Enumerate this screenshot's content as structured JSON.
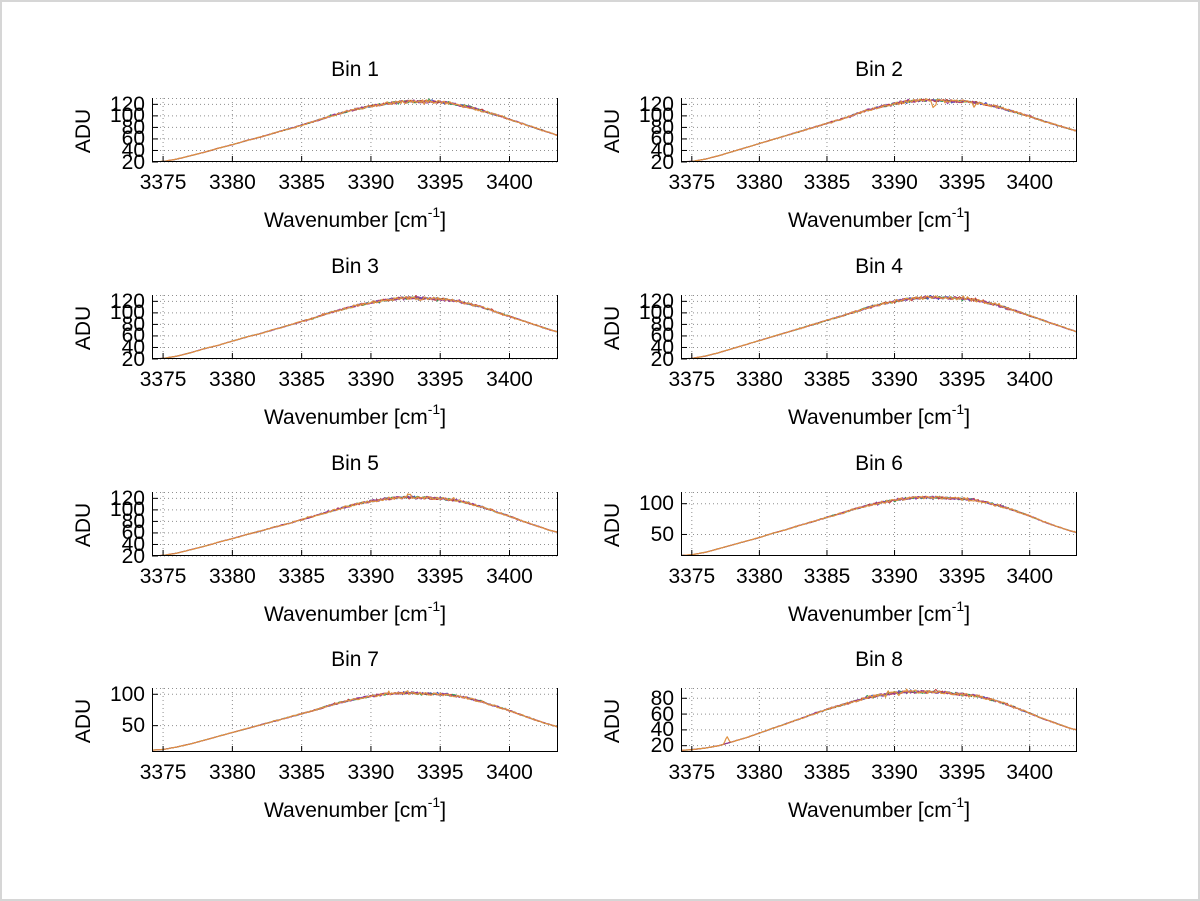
{
  "figure": {
    "background": "#ffffff",
    "frame_color": "#d6d6d6",
    "axis_color": "#000000",
    "grid_color": "#8f8f8f",
    "ylabel": "ADU",
    "xlabel_main": "Wavenumber [cm",
    "xlabel_sup": "-1",
    "xlabel_end": "]",
    "series_colors": [
      "#3b52c4",
      "#2e9e4f",
      "#c43b3b",
      "#953a9e",
      "#e09140"
    ],
    "xlim": [
      3374.2,
      3403.5
    ],
    "xticks": [
      3375,
      3380,
      3385,
      3390,
      3395,
      3400
    ]
  },
  "chart_data": [
    {
      "type": "line",
      "title": "Bin 1",
      "ylabel": "ADU",
      "xlabel": "Wavenumber [cm^-1]",
      "ylim": [
        20,
        131
      ],
      "yticks": [
        20,
        40,
        60,
        80,
        100,
        120
      ],
      "noise_amp": 2.6,
      "spikes": [],
      "points": [
        [
          3374.2,
          20
        ],
        [
          3375,
          21
        ],
        [
          3376,
          25
        ],
        [
          3377,
          31
        ],
        [
          3378,
          37
        ],
        [
          3379,
          44
        ],
        [
          3380,
          50
        ],
        [
          3381,
          57
        ],
        [
          3382,
          63
        ],
        [
          3383,
          70
        ],
        [
          3384,
          77
        ],
        [
          3385,
          84
        ],
        [
          3386,
          91
        ],
        [
          3387,
          99
        ],
        [
          3388,
          106
        ],
        [
          3389,
          112
        ],
        [
          3390,
          117
        ],
        [
          3391,
          121
        ],
        [
          3392,
          124
        ],
        [
          3393,
          125
        ],
        [
          3394,
          125
        ],
        [
          3395,
          124
        ],
        [
          3396,
          121
        ],
        [
          3397,
          116
        ],
        [
          3398,
          109
        ],
        [
          3399,
          102
        ],
        [
          3400,
          94
        ],
        [
          3401,
          86
        ],
        [
          3402,
          78
        ],
        [
          3403,
          70
        ],
        [
          3403.5,
          66
        ]
      ]
    },
    {
      "type": "line",
      "title": "Bin 2",
      "ylabel": "ADU",
      "xlabel": "Wavenumber [cm^-1]",
      "ylim": [
        20,
        131
      ],
      "yticks": [
        20,
        40,
        60,
        80,
        100,
        120
      ],
      "noise_amp": 2.6,
      "spikes": [
        {
          "x": 3392.9,
          "dy": -14
        },
        {
          "x": 3395.9,
          "dy": -8
        }
      ],
      "points": [
        [
          3374.2,
          20
        ],
        [
          3375,
          21
        ],
        [
          3376,
          25
        ],
        [
          3377,
          31
        ],
        [
          3378,
          38
        ],
        [
          3379,
          45
        ],
        [
          3380,
          52
        ],
        [
          3381,
          59
        ],
        [
          3382,
          66
        ],
        [
          3383,
          73
        ],
        [
          3384,
          80
        ],
        [
          3385,
          87
        ],
        [
          3386,
          94
        ],
        [
          3387,
          102
        ],
        [
          3388,
          110
        ],
        [
          3389,
          116
        ],
        [
          3390,
          121
        ],
        [
          3391,
          125
        ],
        [
          3392,
          127
        ],
        [
          3393,
          127
        ],
        [
          3394,
          126
        ],
        [
          3395,
          125
        ],
        [
          3396,
          123
        ],
        [
          3397,
          119
        ],
        [
          3398,
          113
        ],
        [
          3399,
          106
        ],
        [
          3400,
          99
        ],
        [
          3401,
          91
        ],
        [
          3402,
          84
        ],
        [
          3403,
          77
        ],
        [
          3403.5,
          74
        ]
      ]
    },
    {
      "type": "line",
      "title": "Bin 3",
      "ylabel": "ADU",
      "xlabel": "Wavenumber [cm^-1]",
      "ylim": [
        20,
        131
      ],
      "yticks": [
        20,
        40,
        60,
        80,
        100,
        120
      ],
      "noise_amp": 2.6,
      "spikes": [],
      "points": [
        [
          3374.2,
          20
        ],
        [
          3375,
          21
        ],
        [
          3376,
          25
        ],
        [
          3377,
          31
        ],
        [
          3378,
          38
        ],
        [
          3379,
          44
        ],
        [
          3380,
          51
        ],
        [
          3381,
          58
        ],
        [
          3382,
          64
        ],
        [
          3383,
          71
        ],
        [
          3384,
          78
        ],
        [
          3385,
          85
        ],
        [
          3386,
          92
        ],
        [
          3387,
          100
        ],
        [
          3388,
          107
        ],
        [
          3389,
          113
        ],
        [
          3390,
          118
        ],
        [
          3391,
          122
        ],
        [
          3392,
          125
        ],
        [
          3393,
          126
        ],
        [
          3394,
          125
        ],
        [
          3395,
          124
        ],
        [
          3396,
          121
        ],
        [
          3397,
          116
        ],
        [
          3398,
          110
        ],
        [
          3399,
          102
        ],
        [
          3400,
          94
        ],
        [
          3401,
          86
        ],
        [
          3402,
          78
        ],
        [
          3403,
          70
        ],
        [
          3403.5,
          67
        ]
      ]
    },
    {
      "type": "line",
      "title": "Bin 4",
      "ylabel": "ADU",
      "xlabel": "Wavenumber [cm^-1]",
      "ylim": [
        20,
        131
      ],
      "yticks": [
        20,
        40,
        60,
        80,
        100,
        120
      ],
      "noise_amp": 2.6,
      "spikes": [],
      "points": [
        [
          3374.2,
          20
        ],
        [
          3375,
          21
        ],
        [
          3376,
          25
        ],
        [
          3377,
          31
        ],
        [
          3378,
          38
        ],
        [
          3379,
          45
        ],
        [
          3380,
          52
        ],
        [
          3381,
          59
        ],
        [
          3382,
          66
        ],
        [
          3383,
          73
        ],
        [
          3384,
          80
        ],
        [
          3385,
          87
        ],
        [
          3386,
          94
        ],
        [
          3387,
          101
        ],
        [
          3388,
          109
        ],
        [
          3389,
          115
        ],
        [
          3390,
          120
        ],
        [
          3391,
          124
        ],
        [
          3392,
          126
        ],
        [
          3393,
          127
        ],
        [
          3394,
          126
        ],
        [
          3395,
          125
        ],
        [
          3396,
          122
        ],
        [
          3397,
          117
        ],
        [
          3398,
          111
        ],
        [
          3399,
          103
        ],
        [
          3400,
          95
        ],
        [
          3401,
          87
        ],
        [
          3402,
          79
        ],
        [
          3403,
          71
        ],
        [
          3403.5,
          67
        ]
      ]
    },
    {
      "type": "line",
      "title": "Bin 5",
      "ylabel": "ADU",
      "xlabel": "Wavenumber [cm^-1]",
      "ylim": [
        20,
        131
      ],
      "yticks": [
        20,
        40,
        60,
        80,
        100,
        120
      ],
      "noise_amp": 2.6,
      "spikes": [
        {
          "x": 3392.7,
          "dy": 6
        }
      ],
      "points": [
        [
          3374.2,
          20
        ],
        [
          3375,
          21
        ],
        [
          3376,
          25
        ],
        [
          3377,
          31
        ],
        [
          3378,
          37
        ],
        [
          3379,
          44
        ],
        [
          3380,
          50
        ],
        [
          3381,
          57
        ],
        [
          3382,
          63
        ],
        [
          3383,
          70
        ],
        [
          3384,
          76
        ],
        [
          3385,
          83
        ],
        [
          3386,
          90
        ],
        [
          3387,
          97
        ],
        [
          3388,
          104
        ],
        [
          3389,
          110
        ],
        [
          3390,
          115
        ],
        [
          3391,
          119
        ],
        [
          3392,
          121
        ],
        [
          3393,
          122
        ],
        [
          3394,
          121
        ],
        [
          3395,
          120
        ],
        [
          3396,
          117
        ],
        [
          3397,
          112
        ],
        [
          3398,
          105
        ],
        [
          3399,
          97
        ],
        [
          3400,
          89
        ],
        [
          3401,
          80
        ],
        [
          3402,
          72
        ],
        [
          3403,
          64
        ],
        [
          3403.5,
          61
        ]
      ]
    },
    {
      "type": "line",
      "title": "Bin 6",
      "ylabel": "ADU",
      "xlabel": "Wavenumber [cm^-1]",
      "ylim": [
        15,
        119
      ],
      "yticks": [
        50,
        100
      ],
      "noise_amp": 2.2,
      "spikes": [],
      "points": [
        [
          3374.2,
          16
        ],
        [
          3375,
          17
        ],
        [
          3376,
          21
        ],
        [
          3377,
          27
        ],
        [
          3378,
          33
        ],
        [
          3379,
          39
        ],
        [
          3380,
          45
        ],
        [
          3381,
          52
        ],
        [
          3382,
          58
        ],
        [
          3383,
          65
        ],
        [
          3384,
          71
        ],
        [
          3385,
          78
        ],
        [
          3386,
          84
        ],
        [
          3387,
          91
        ],
        [
          3388,
          97
        ],
        [
          3389,
          102
        ],
        [
          3390,
          106
        ],
        [
          3391,
          109
        ],
        [
          3392,
          110
        ],
        [
          3393,
          110
        ],
        [
          3394,
          109
        ],
        [
          3395,
          108
        ],
        [
          3396,
          106
        ],
        [
          3397,
          101
        ],
        [
          3398,
          95
        ],
        [
          3399,
          88
        ],
        [
          3400,
          80
        ],
        [
          3401,
          71
        ],
        [
          3402,
          63
        ],
        [
          3403,
          56
        ],
        [
          3403.5,
          53
        ]
      ]
    },
    {
      "type": "line",
      "title": "Bin 7",
      "ylabel": "ADU",
      "xlabel": "Wavenumber [cm^-1]",
      "ylim": [
        8,
        110
      ],
      "yticks": [
        50,
        100
      ],
      "noise_amp": 2.2,
      "spikes": [],
      "points": [
        [
          3374.2,
          11
        ],
        [
          3375,
          12
        ],
        [
          3376,
          16
        ],
        [
          3377,
          21
        ],
        [
          3378,
          27
        ],
        [
          3379,
          33
        ],
        [
          3380,
          39
        ],
        [
          3381,
          45
        ],
        [
          3382,
          51
        ],
        [
          3383,
          57
        ],
        [
          3384,
          63
        ],
        [
          3385,
          69
        ],
        [
          3386,
          75
        ],
        [
          3387,
          82
        ],
        [
          3388,
          88
        ],
        [
          3389,
          93
        ],
        [
          3390,
          97
        ],
        [
          3391,
          100
        ],
        [
          3392,
          102
        ],
        [
          3393,
          102
        ],
        [
          3394,
          101
        ],
        [
          3395,
          100
        ],
        [
          3396,
          98
        ],
        [
          3397,
          94
        ],
        [
          3398,
          88
        ],
        [
          3399,
          81
        ],
        [
          3400,
          74
        ],
        [
          3401,
          66
        ],
        [
          3402,
          58
        ],
        [
          3403,
          51
        ],
        [
          3403.5,
          48
        ]
      ]
    },
    {
      "type": "line",
      "title": "Bin 8",
      "ylabel": "ADU",
      "xlabel": "Wavenumber [cm^-1]",
      "ylim": [
        12,
        93
      ],
      "yticks": [
        20,
        40,
        60,
        80
      ],
      "noise_amp": 2.0,
      "spikes": [
        {
          "x": 3377.6,
          "dy": 9
        }
      ],
      "points": [
        [
          3374.2,
          14
        ],
        [
          3375,
          15
        ],
        [
          3376,
          17
        ],
        [
          3377,
          20
        ],
        [
          3378,
          25
        ],
        [
          3379,
          30
        ],
        [
          3380,
          36
        ],
        [
          3381,
          42
        ],
        [
          3382,
          48
        ],
        [
          3383,
          54
        ],
        [
          3384,
          60
        ],
        [
          3385,
          66
        ],
        [
          3386,
          71
        ],
        [
          3387,
          76
        ],
        [
          3388,
          81
        ],
        [
          3389,
          84
        ],
        [
          3390,
          87
        ],
        [
          3391,
          88
        ],
        [
          3392,
          88
        ],
        [
          3393,
          88
        ],
        [
          3394,
          87
        ],
        [
          3395,
          85
        ],
        [
          3396,
          83
        ],
        [
          3397,
          79
        ],
        [
          3398,
          74
        ],
        [
          3399,
          68
        ],
        [
          3400,
          61
        ],
        [
          3401,
          54
        ],
        [
          3402,
          48
        ],
        [
          3403,
          42
        ],
        [
          3403.5,
          40
        ]
      ]
    }
  ]
}
